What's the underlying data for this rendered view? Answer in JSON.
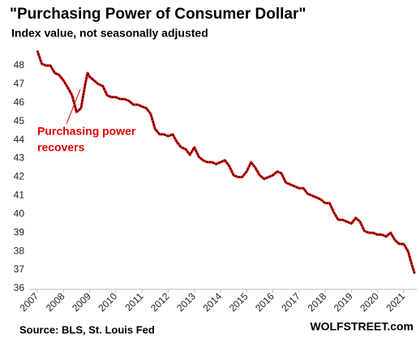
{
  "chart_data": {
    "type": "line",
    "title": "\"Purchasing Power of Consumer Dollar\"",
    "subtitle": "Index value, not seasonally adjusted",
    "annotation": [
      "Purchasing power",
      "recovers"
    ],
    "source": "Source: BLS, St. Louis Fed",
    "brand": "WOLFSTREET.com",
    "xlim": [
      2007,
      2021.5
    ],
    "xticks": [
      2007,
      2008,
      2009,
      2010,
      2011,
      2012,
      2013,
      2014,
      2015,
      2016,
      2017,
      2018,
      2019,
      2020,
      2021
    ],
    "ylim": [
      36,
      49
    ],
    "yticks": [
      36,
      37,
      38,
      39,
      40,
      41,
      42,
      43,
      44,
      45,
      46,
      47,
      48
    ],
    "grid": false,
    "x": [
      2007.0,
      2007.17,
      2007.33,
      2007.5,
      2007.67,
      2007.83,
      2008.0,
      2008.17,
      2008.33,
      2008.5,
      2008.67,
      2008.83,
      2008.92,
      2009.0,
      2009.17,
      2009.33,
      2009.5,
      2009.67,
      2009.83,
      2010.0,
      2010.17,
      2010.33,
      2010.5,
      2010.67,
      2010.83,
      2011.0,
      2011.17,
      2011.33,
      2011.5,
      2011.67,
      2011.83,
      2012.0,
      2012.17,
      2012.33,
      2012.5,
      2012.67,
      2012.83,
      2013.0,
      2013.17,
      2013.33,
      2013.5,
      2013.67,
      2013.83,
      2014.0,
      2014.17,
      2014.33,
      2014.5,
      2014.67,
      2014.83,
      2015.0,
      2015.17,
      2015.33,
      2015.5,
      2015.67,
      2015.83,
      2016.0,
      2016.17,
      2016.33,
      2016.5,
      2016.67,
      2016.83,
      2017.0,
      2017.17,
      2017.33,
      2017.5,
      2017.67,
      2017.83,
      2018.0,
      2018.17,
      2018.33,
      2018.5,
      2018.67,
      2018.83,
      2019.0,
      2019.17,
      2019.33,
      2019.5,
      2019.67,
      2019.83,
      2020.0,
      2020.17,
      2020.33,
      2020.5,
      2020.67,
      2020.83,
      2021.0,
      2021.17,
      2021.33,
      2021.42
    ],
    "series": [
      {
        "color": "#e00000",
        "values": [
          48.8,
          48.1,
          48.0,
          48.0,
          47.6,
          47.5,
          47.2,
          46.8,
          46.4,
          45.5,
          45.7,
          47.0,
          47.6,
          47.4,
          47.2,
          47.0,
          46.9,
          46.4,
          46.3,
          46.3,
          46.2,
          46.2,
          46.1,
          45.9,
          45.9,
          45.8,
          45.7,
          45.4,
          44.6,
          44.3,
          44.3,
          44.2,
          44.3,
          43.9,
          43.6,
          43.5,
          43.2,
          43.6,
          43.1,
          42.9,
          42.8,
          42.8,
          42.7,
          42.8,
          42.9,
          42.6,
          42.1,
          42.0,
          42.0,
          42.3,
          42.8,
          42.5,
          42.1,
          41.9,
          42.0,
          42.1,
          42.3,
          42.2,
          41.7,
          41.6,
          41.5,
          41.4,
          41.4,
          41.1,
          41.0,
          40.9,
          40.8,
          40.6,
          40.6,
          40.1,
          39.7,
          39.7,
          39.6,
          39.5,
          39.8,
          39.6,
          39.1,
          39.0,
          39.0,
          38.9,
          38.9,
          38.8,
          39.0,
          38.6,
          38.4,
          38.4,
          38.0,
          37.2,
          36.8
        ]
      }
    ]
  }
}
